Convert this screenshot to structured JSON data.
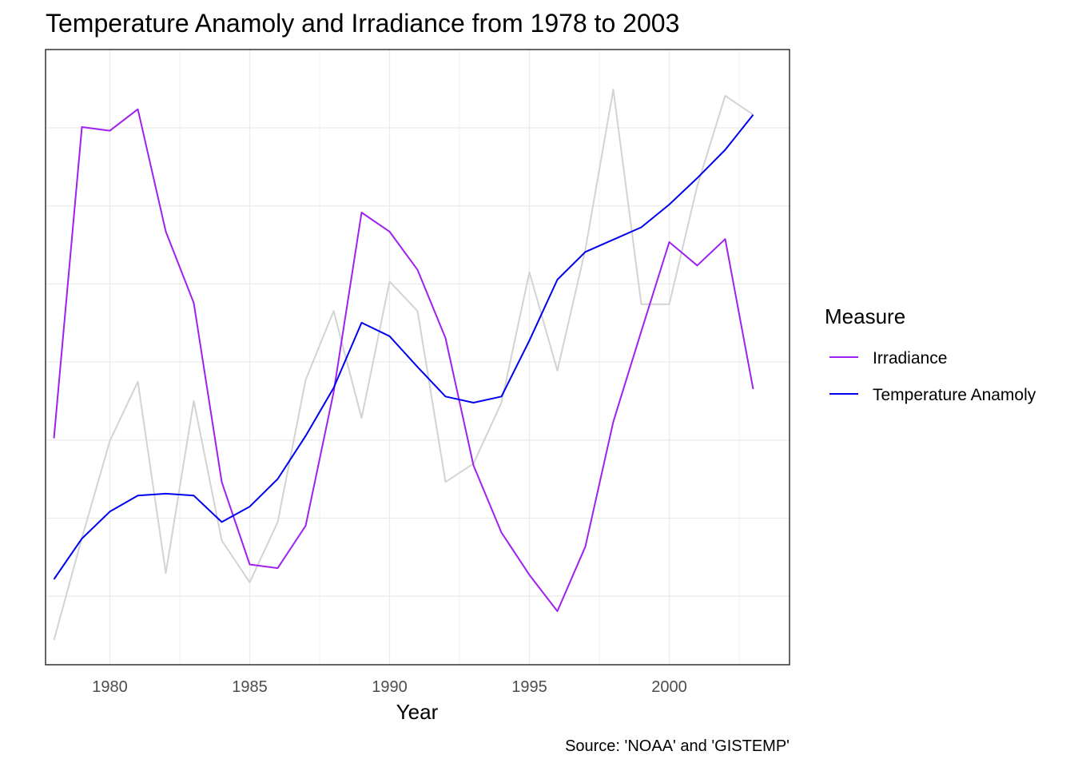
{
  "chart_data": {
    "type": "line",
    "title": "Temperature Anamoly and Irradiance from 1978 to 2003",
    "xlabel": "Year",
    "ylabel": "",
    "caption": "Source: 'NOAA' and 'GISTEMP'",
    "xlim": [
      1977.7,
      2004.3
    ],
    "ylim": [
      0,
      1
    ],
    "x_ticks": [
      1980,
      1985,
      1990,
      1995,
      2000
    ],
    "y_axis_labels_shown": false,
    "grid": true,
    "legend": {
      "title": "Measure",
      "position": "right",
      "entries": [
        {
          "label": "Irradiance",
          "color": "#a020f0"
        },
        {
          "label": "Temperature Anamoly",
          "color": "#0000ee"
        }
      ]
    },
    "x": [
      1978,
      1979,
      1980,
      1981,
      1982,
      1983,
      1984,
      1985,
      1986,
      1987,
      1988,
      1989,
      1990,
      1991,
      1992,
      1993,
      1994,
      1995,
      1996,
      1997,
      1998,
      1999,
      2000,
      2001,
      2002,
      2003
    ],
    "series": [
      {
        "name": "Irradiance",
        "color": "#a020f0",
        "values": [
          0.368,
          0.874,
          0.868,
          0.903,
          0.704,
          0.588,
          0.297,
          0.163,
          0.157,
          0.226,
          0.443,
          0.735,
          0.704,
          0.642,
          0.531,
          0.324,
          0.215,
          0.146,
          0.087,
          0.192,
          0.395,
          0.542,
          0.687,
          0.649,
          0.692,
          0.448
        ]
      },
      {
        "name": "Temperature Anamoly",
        "color": "#0000ee",
        "values": [
          0.139,
          0.205,
          0.249,
          0.275,
          0.278,
          0.275,
          0.232,
          0.257,
          0.302,
          0.372,
          0.45,
          0.556,
          0.534,
          0.484,
          0.436,
          0.426,
          0.436,
          0.527,
          0.626,
          0.671,
          0.691,
          0.711,
          0.748,
          0.791,
          0.837,
          0.894
        ]
      },
      {
        "color": "#d3d3d3",
        "values": [
          0.04,
          0.206,
          0.364,
          0.46,
          0.149,
          0.429,
          0.202,
          0.134,
          0.232,
          0.463,
          0.575,
          0.401,
          0.623,
          0.575,
          0.297,
          0.327,
          0.426,
          0.638,
          0.478,
          0.675,
          0.935,
          0.586,
          0.586,
          0.778,
          0.925,
          0.894
        ]
      }
    ]
  }
}
